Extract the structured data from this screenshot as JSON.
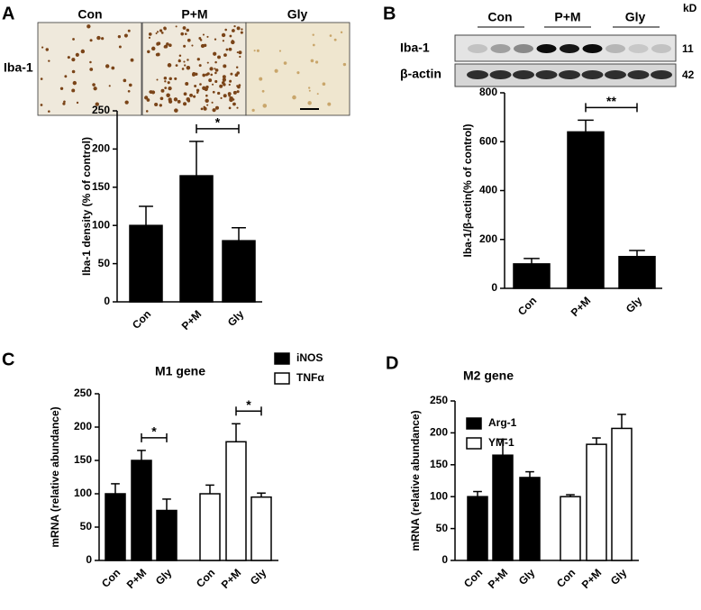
{
  "micrograph": {
    "panel": "A",
    "row_label": "Iba-1",
    "columns": [
      "Con",
      "P+M",
      "Gly"
    ]
  },
  "blot": {
    "panel": "B",
    "columns": [
      "Con",
      "P+M",
      "Gly"
    ],
    "unit": "kD",
    "rows": [
      {
        "label": "Iba-1",
        "size": 11
      },
      {
        "label": "β-actin",
        "size": 42
      }
    ]
  },
  "chart_data": [
    {
      "type": "bar",
      "ylabel": "Iba-1 density (% of control)",
      "categories": [
        "Con",
        "P+M",
        "Gly"
      ],
      "values": [
        100,
        165,
        80
      ],
      "errors": [
        25,
        45,
        17
      ],
      "color": "#000000",
      "ylim": [
        0,
        250
      ],
      "yticks": [
        0,
        50,
        100,
        150,
        200,
        250
      ],
      "annotations": [
        {
          "text": "*",
          "categories": [
            1,
            2
          ]
        }
      ]
    },
    {
      "type": "bar",
      "ylabel": "Iba-1/β-actin(% of control)",
      "categories": [
        "Con",
        "P+M",
        "Gly"
      ],
      "values": [
        100,
        640,
        130
      ],
      "errors": [
        22,
        48,
        25
      ],
      "color": "#000000",
      "ylim": [
        0,
        800
      ],
      "yticks": [
        0,
        200,
        400,
        600,
        800
      ],
      "annotations": [
        {
          "text": "**",
          "categories": [
            1,
            2
          ]
        }
      ]
    },
    {
      "type": "bar",
      "panel": "C",
      "title": "M1 gene",
      "ylabel": "mRNA (relative abundance)",
      "categories": [
        "Con",
        "P+M",
        "Gly"
      ],
      "series": [
        {
          "name": "iNOS",
          "color": "#000000",
          "values": [
            100,
            150,
            75
          ],
          "errors": [
            15,
            15,
            17
          ]
        },
        {
          "name": "TNFα",
          "color": "#ffffff",
          "values": [
            100,
            178,
            95
          ],
          "errors": [
            13,
            27,
            6
          ]
        }
      ],
      "ylim": [
        0,
        250
      ],
      "yticks": [
        0,
        50,
        100,
        150,
        200,
        250
      ],
      "annotations": [
        {
          "text": "*",
          "series": 0,
          "categories": [
            1,
            2
          ]
        },
        {
          "text": "*",
          "series": 1,
          "categories": [
            1,
            2
          ]
        }
      ]
    },
    {
      "type": "bar",
      "panel": "D",
      "title": "M2 gene",
      "ylabel": "mRNA (relative abundance)",
      "categories": [
        "Con",
        "P+M",
        "Gly"
      ],
      "series": [
        {
          "name": "Arg-1",
          "color": "#000000",
          "values": [
            100,
            165,
            130
          ],
          "errors": [
            8,
            25,
            9
          ]
        },
        {
          "name": "YM-1",
          "color": "#ffffff",
          "values": [
            100,
            182,
            207
          ],
          "errors": [
            3,
            10,
            22
          ]
        }
      ],
      "ylim": [
        0,
        250
      ],
      "yticks": [
        0,
        50,
        100,
        150,
        200,
        250
      ]
    }
  ]
}
